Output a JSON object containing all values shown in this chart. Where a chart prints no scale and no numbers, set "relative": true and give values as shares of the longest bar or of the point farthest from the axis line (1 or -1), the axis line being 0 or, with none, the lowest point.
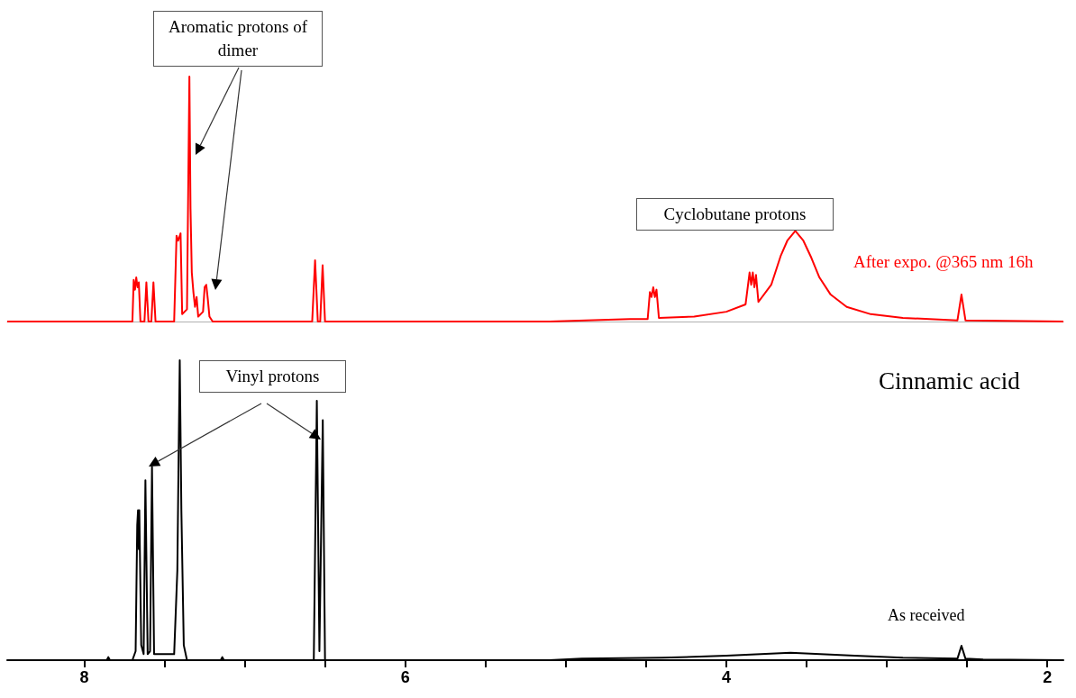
{
  "chart_data": [
    {
      "type": "line",
      "relative": true,
      "marker": "none",
      "line_style": "solid",
      "tick_labels": false,
      "xlim": [
        8.48,
        1.9
      ],
      "annotations": [
        "Aromatic protons of dimer",
        "Cyclobutane protons"
      ],
      "series": [
        {
          "name": "After expo. @365 nm 16h",
          "color": "#ff0000",
          "x": [
            8.48,
            7.72,
            7.7,
            7.692,
            7.684,
            7.676,
            7.668,
            7.66,
            7.65,
            7.625,
            7.613,
            7.6,
            7.582,
            7.569,
            7.556,
            7.44,
            7.425,
            7.415,
            7.4,
            7.39,
            7.36,
            7.345,
            7.338,
            7.33,
            7.32,
            7.31,
            7.3,
            7.29,
            7.26,
            7.25,
            7.24,
            7.23,
            7.22,
            7.2,
            6.58,
            6.562,
            6.545,
            6.53,
            6.515,
            6.5,
            5.1,
            4.6,
            4.49,
            4.476,
            4.466,
            4.455,
            4.445,
            4.435,
            4.42,
            4.2,
            4.0,
            3.88,
            3.855,
            3.845,
            3.835,
            3.825,
            3.815,
            3.8,
            3.72,
            3.66,
            3.62,
            3.57,
            3.52,
            3.47,
            3.42,
            3.35,
            3.25,
            3.1,
            2.9,
            2.56,
            2.535,
            2.51,
            1.9
          ],
          "values": [
            0,
            0,
            0,
            0.17,
            0.13,
            0.18,
            0.14,
            0.16,
            0,
            0,
            0.16,
            0,
            0,
            0.16,
            0,
            0,
            0.35,
            0.33,
            0.36,
            0.03,
            0.05,
            1.0,
            0.46,
            0.2,
            0.12,
            0.06,
            0.1,
            0.02,
            0.04,
            0.14,
            0.15,
            0.09,
            0.02,
            0,
            0,
            0.25,
            0,
            0,
            0.23,
            0,
            0,
            0.01,
            0.01,
            0.12,
            0.1,
            0.14,
            0.1,
            0.13,
            0.015,
            0.02,
            0.04,
            0.07,
            0.2,
            0.15,
            0.2,
            0.14,
            0.19,
            0.08,
            0.15,
            0.27,
            0.33,
            0.37,
            0.33,
            0.26,
            0.18,
            0.11,
            0.06,
            0.03,
            0.015,
            0.005,
            0.11,
            0.005,
            0
          ]
        }
      ]
    },
    {
      "type": "line",
      "relative": true,
      "marker": "none",
      "line_style": "solid",
      "tick_labels": "x",
      "xlim": [
        8.48,
        1.9
      ],
      "xticks": [
        8,
        {
          "value": 7.5,
          "label": null
        },
        {
          "value": 7,
          "label": null
        },
        {
          "value": 6.5,
          "label": null
        },
        6,
        {
          "value": 5.5,
          "label": null
        },
        {
          "value": 5,
          "label": null
        },
        {
          "value": 4.5,
          "label": null
        },
        4,
        {
          "value": 3.5,
          "label": null
        },
        {
          "value": 3,
          "label": null
        },
        {
          "value": 2.5,
          "label": null
        },
        2
      ],
      "annotations": [
        "Vinyl protons",
        "Cinnamic acid"
      ],
      "series": [
        {
          "name": "As received",
          "color": "#000000",
          "x": [
            8.48,
            7.86,
            7.85,
            7.84,
            7.7,
            7.68,
            7.67,
            7.665,
            7.66,
            7.657,
            7.645,
            7.63,
            7.619,
            7.605,
            7.59,
            7.578,
            7.565,
            7.44,
            7.42,
            7.41,
            7.405,
            7.395,
            7.38,
            7.36,
            7.15,
            7.14,
            7.13,
            6.57,
            6.551,
            6.535,
            6.514,
            6.5,
            5.1,
            4.9,
            4.4,
            4.0,
            3.6,
            3.2,
            2.9,
            2.56,
            2.535,
            2.51,
            2.4,
            1.9
          ],
          "values": [
            0,
            0,
            0.01,
            0,
            0,
            0.03,
            0.45,
            0.5,
            0.37,
            0.5,
            0.05,
            0.02,
            0.6,
            0.02,
            0.03,
            0.645,
            0.02,
            0.02,
            0.3,
            0.78,
            1.0,
            0.5,
            0.05,
            0,
            0,
            0.01,
            0,
            0,
            0.865,
            0.03,
            0.8,
            0,
            0,
            0.005,
            0.008,
            0.015,
            0.025,
            0.015,
            0.008,
            0.005,
            0.048,
            0.005,
            0.002,
            0
          ]
        }
      ]
    }
  ]
}
